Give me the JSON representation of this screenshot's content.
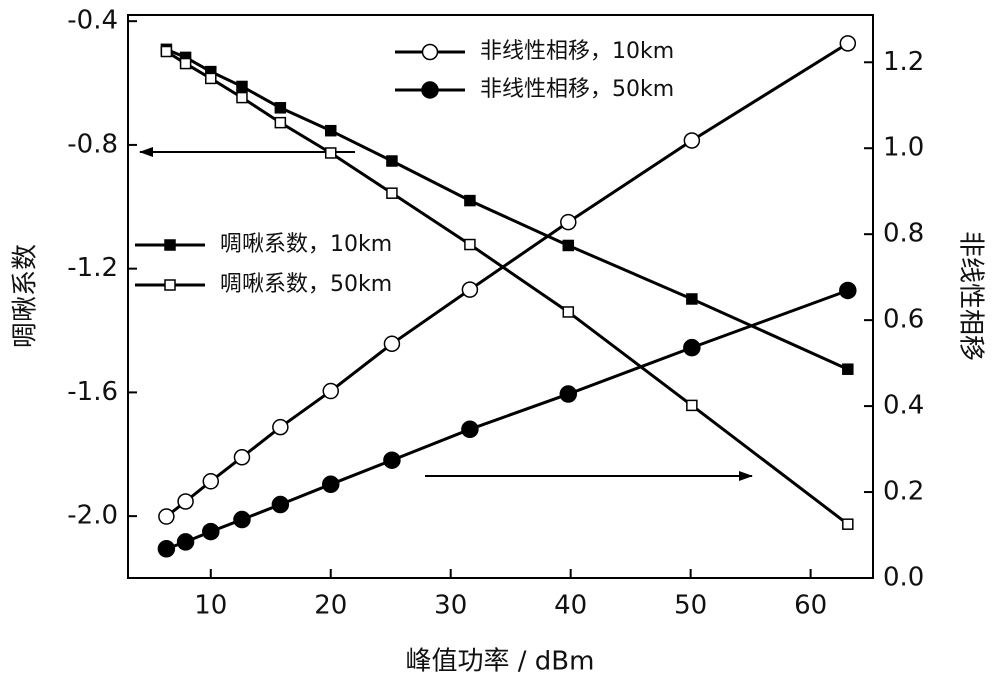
{
  "chart_data": {
    "type": "line",
    "x_label": "峰值功率 / dBm",
    "y_label": "啁啾系数",
    "y2_label": "非线性相移",
    "xlim": [
      3.1,
      65.2
    ],
    "xticks": [
      10,
      20,
      30,
      40,
      50,
      60
    ],
    "ylim": [
      -2.2,
      -0.38
    ],
    "yticks": [
      -0.4,
      -0.8,
      -1.2,
      -1.6,
      {
        "value": -2.0,
        "label": "-2.0"
      }
    ],
    "y2lim": [
      0,
      1.31
    ],
    "y2ticks": [
      {
        "value": 0,
        "label": "0.0"
      },
      0.2,
      0.4,
      0.6,
      0.8,
      {
        "value": 1.0,
        "label": "1.0"
      },
      1.2
    ],
    "series": [
      {
        "name": "啁啾系数，10km",
        "color": "#000000",
        "marker": "square",
        "marker_fill": "filled",
        "axis": "y",
        "x": [
          6.3,
          7.9,
          10,
          12.6,
          15.8,
          20,
          25.1,
          31.6,
          39.8,
          50.1,
          63.1
        ],
        "values": [
          -0.491,
          -0.517,
          -0.563,
          -0.611,
          -0.68,
          -0.754,
          -0.852,
          -0.98,
          -1.125,
          -1.298,
          -1.525
        ]
      },
      {
        "name": "啁啾系数，50km",
        "color": "#000000",
        "marker": "square",
        "marker_fill": "open",
        "axis": "y",
        "x": [
          6.3,
          7.9,
          10,
          12.6,
          15.8,
          20,
          25.1,
          31.6,
          39.8,
          50.1,
          63.1
        ],
        "values": [
          -0.498,
          -0.537,
          -0.585,
          -0.647,
          -0.728,
          -0.826,
          -0.956,
          -1.122,
          -1.34,
          -1.642,
          -2.026
        ]
      },
      {
        "name": "非线性相移，10km",
        "color": "#000000",
        "marker": "circle",
        "marker_fill": "open",
        "axis": "y2",
        "x": [
          6.3,
          7.9,
          10,
          12.6,
          15.8,
          20,
          25.1,
          31.6,
          39.8,
          50.1,
          63.1
        ],
        "values": [
          0.143,
          0.178,
          0.225,
          0.281,
          0.351,
          0.435,
          0.545,
          0.671,
          0.828,
          1.018,
          1.244
        ]
      },
      {
        "name": "非线性相移，50km",
        "color": "#000000",
        "marker": "circle",
        "marker_fill": "filled",
        "axis": "y2",
        "x": [
          6.3,
          7.9,
          10,
          12.6,
          15.8,
          20,
          25.1,
          31.6,
          39.8,
          50.1,
          63.1
        ],
        "values": [
          0.068,
          0.084,
          0.108,
          0.136,
          0.171,
          0.218,
          0.274,
          0.346,
          0.428,
          0.536,
          0.669
        ]
      }
    ]
  }
}
